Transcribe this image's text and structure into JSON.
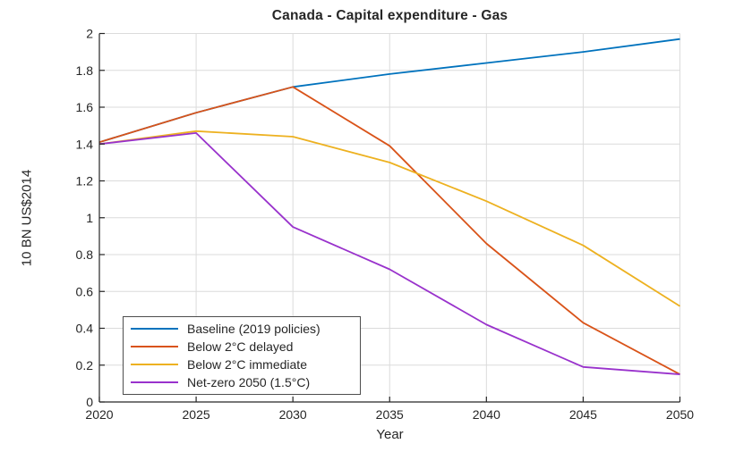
{
  "chart_data": {
    "type": "line",
    "title": "Canada - Capital expenditure - Gas",
    "xlabel": "Year",
    "ylabel": "10 BN US$2014",
    "x": [
      2020,
      2025,
      2030,
      2035,
      2040,
      2045,
      2050
    ],
    "xlim": [
      2020,
      2050
    ],
    "ylim": [
      0,
      2
    ],
    "xtick_step": 5,
    "ytick_step": 0.2,
    "grid": true,
    "legend_position": "bottom-left",
    "axis_color": "#262626",
    "grid_color": "#dbdbdb",
    "series": [
      {
        "name": "Baseline (2019 policies)",
        "color": "#0072BD",
        "values": [
          1.41,
          1.57,
          1.71,
          1.78,
          1.84,
          1.9,
          1.97
        ]
      },
      {
        "name": "Below 2°C delayed",
        "color": "#D95319",
        "values": [
          1.41,
          1.57,
          1.71,
          1.39,
          0.86,
          0.43,
          0.15
        ]
      },
      {
        "name": "Below 2°C immediate",
        "color": "#EDB120",
        "values": [
          1.4,
          1.47,
          1.44,
          1.3,
          1.09,
          0.85,
          0.52
        ]
      },
      {
        "name": "Net-zero 2050 (1.5°C)",
        "color": "#9932CC",
        "values": [
          1.4,
          1.46,
          0.95,
          0.72,
          0.42,
          0.19,
          0.15
        ]
      }
    ]
  }
}
